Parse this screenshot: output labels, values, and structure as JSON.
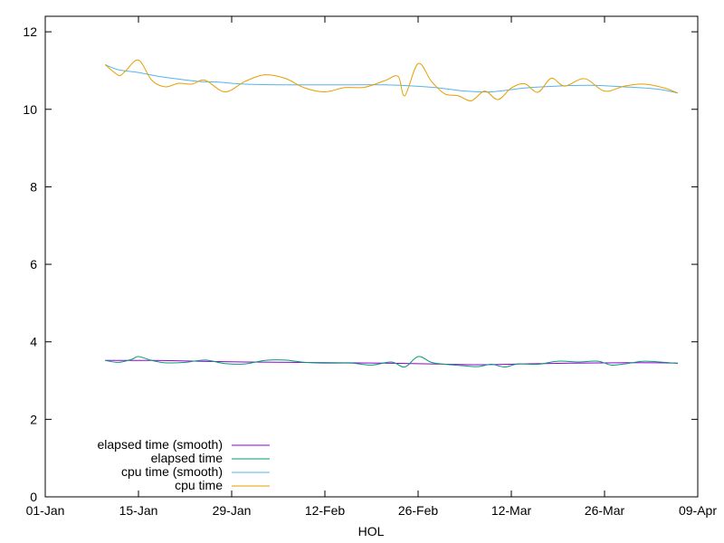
{
  "chart_data": {
    "type": "line",
    "xlabel": "HOL",
    "ylabel": "",
    "x_axis": {
      "type": "date",
      "ticks": [
        {
          "date": "2021-01-01",
          "label": "01-Jan"
        },
        {
          "date": "2021-01-15",
          "label": "15-Jan"
        },
        {
          "date": "2021-01-29",
          "label": "29-Jan"
        },
        {
          "date": "2021-02-12",
          "label": "12-Feb"
        },
        {
          "date": "2021-02-26",
          "label": "26-Feb"
        },
        {
          "date": "2021-03-12",
          "label": "12-Mar"
        },
        {
          "date": "2021-03-26",
          "label": "26-Mar"
        },
        {
          "date": "2021-04-09",
          "label": "09-Apr"
        }
      ],
      "range": [
        "2021-01-01",
        "2021-04-09"
      ]
    },
    "y_axis": {
      "ticks": [
        0,
        2,
        4,
        6,
        8,
        10,
        12
      ],
      "range": [
        0,
        12.4
      ]
    },
    "grid": false,
    "legend_position": "bottom-left",
    "series": [
      {
        "name": "elapsed time (smooth)",
        "color": "#9400d3",
        "points": [
          [
            "2021-01-10",
            3.52
          ],
          [
            "2021-01-17",
            3.52
          ],
          [
            "2021-01-24",
            3.5
          ],
          [
            "2021-01-31",
            3.48
          ],
          [
            "2021-02-07",
            3.47
          ],
          [
            "2021-02-14",
            3.46
          ],
          [
            "2021-02-21",
            3.45
          ],
          [
            "2021-02-28",
            3.43
          ],
          [
            "2021-03-07",
            3.41
          ],
          [
            "2021-03-14",
            3.43
          ],
          [
            "2021-03-21",
            3.45
          ],
          [
            "2021-03-28",
            3.46
          ],
          [
            "2021-04-03",
            3.46
          ],
          [
            "2021-04-06",
            3.45
          ]
        ]
      },
      {
        "name": "elapsed time",
        "color": "#009e73",
        "points": [
          [
            "2021-01-10",
            3.52
          ],
          [
            "2021-01-12",
            3.47
          ],
          [
            "2021-01-14",
            3.55
          ],
          [
            "2021-01-15",
            3.62
          ],
          [
            "2021-01-17",
            3.52
          ],
          [
            "2021-01-19",
            3.46
          ],
          [
            "2021-01-22",
            3.47
          ],
          [
            "2021-01-25",
            3.53
          ],
          [
            "2021-01-28",
            3.44
          ],
          [
            "2021-01-31",
            3.43
          ],
          [
            "2021-02-03",
            3.52
          ],
          [
            "2021-02-06",
            3.53
          ],
          [
            "2021-02-09",
            3.47
          ],
          [
            "2021-02-12",
            3.45
          ],
          [
            "2021-02-16",
            3.45
          ],
          [
            "2021-02-19",
            3.4
          ],
          [
            "2021-02-22",
            3.48
          ],
          [
            "2021-02-24",
            3.35
          ],
          [
            "2021-02-26",
            3.62
          ],
          [
            "2021-02-28",
            3.47
          ],
          [
            "2021-03-02",
            3.42
          ],
          [
            "2021-03-05",
            3.38
          ],
          [
            "2021-03-07",
            3.36
          ],
          [
            "2021-03-09",
            3.42
          ],
          [
            "2021-03-11",
            3.35
          ],
          [
            "2021-03-13",
            3.43
          ],
          [
            "2021-03-16",
            3.42
          ],
          [
            "2021-03-19",
            3.5
          ],
          [
            "2021-03-22",
            3.48
          ],
          [
            "2021-03-25",
            3.5
          ],
          [
            "2021-03-27",
            3.4
          ],
          [
            "2021-03-29",
            3.43
          ],
          [
            "2021-04-01",
            3.5
          ],
          [
            "2021-04-04",
            3.47
          ],
          [
            "2021-04-06",
            3.44
          ]
        ]
      },
      {
        "name": "cpu time (smooth)",
        "color": "#56b4e9",
        "points": [
          [
            "2021-01-10",
            11.15
          ],
          [
            "2021-01-12",
            11.02
          ],
          [
            "2021-01-15",
            10.95
          ],
          [
            "2021-01-18",
            10.85
          ],
          [
            "2021-01-21",
            10.78
          ],
          [
            "2021-01-24",
            10.72
          ],
          [
            "2021-01-27",
            10.7
          ],
          [
            "2021-01-31",
            10.65
          ],
          [
            "2021-02-07",
            10.63
          ],
          [
            "2021-02-14",
            10.63
          ],
          [
            "2021-02-21",
            10.63
          ],
          [
            "2021-02-28",
            10.57
          ],
          [
            "2021-03-05",
            10.47
          ],
          [
            "2021-03-09",
            10.45
          ],
          [
            "2021-03-14",
            10.55
          ],
          [
            "2021-03-19",
            10.6
          ],
          [
            "2021-03-24",
            10.62
          ],
          [
            "2021-03-29",
            10.58
          ],
          [
            "2021-04-03",
            10.52
          ],
          [
            "2021-04-06",
            10.42
          ]
        ]
      },
      {
        "name": "cpu time",
        "color": "#e69f00",
        "points": [
          [
            "2021-01-10",
            11.15
          ],
          [
            "2021-01-12",
            10.88
          ],
          [
            "2021-01-13",
            10.98
          ],
          [
            "2021-01-15",
            11.27
          ],
          [
            "2021-01-17",
            10.75
          ],
          [
            "2021-01-19",
            10.58
          ],
          [
            "2021-01-21",
            10.67
          ],
          [
            "2021-01-23",
            10.65
          ],
          [
            "2021-01-25",
            10.75
          ],
          [
            "2021-01-28",
            10.45
          ],
          [
            "2021-01-31",
            10.72
          ],
          [
            "2021-02-03",
            10.89
          ],
          [
            "2021-02-06",
            10.8
          ],
          [
            "2021-02-09",
            10.55
          ],
          [
            "2021-02-12",
            10.45
          ],
          [
            "2021-02-15",
            10.56
          ],
          [
            "2021-02-18",
            10.57
          ],
          [
            "2021-02-21",
            10.74
          ],
          [
            "2021-02-23",
            10.85
          ],
          [
            "2021-02-24",
            10.35
          ],
          [
            "2021-02-26",
            11.18
          ],
          [
            "2021-02-28",
            10.72
          ],
          [
            "2021-03-02",
            10.4
          ],
          [
            "2021-03-04",
            10.35
          ],
          [
            "2021-03-06",
            10.22
          ],
          [
            "2021-03-08",
            10.47
          ],
          [
            "2021-03-10",
            10.25
          ],
          [
            "2021-03-12",
            10.55
          ],
          [
            "2021-03-14",
            10.66
          ],
          [
            "2021-03-16",
            10.44
          ],
          [
            "2021-03-18",
            10.8
          ],
          [
            "2021-03-20",
            10.6
          ],
          [
            "2021-03-23",
            10.79
          ],
          [
            "2021-03-26",
            10.47
          ],
          [
            "2021-03-29",
            10.6
          ],
          [
            "2021-04-01",
            10.65
          ],
          [
            "2021-04-04",
            10.55
          ],
          [
            "2021-04-06",
            10.42
          ]
        ]
      }
    ]
  }
}
